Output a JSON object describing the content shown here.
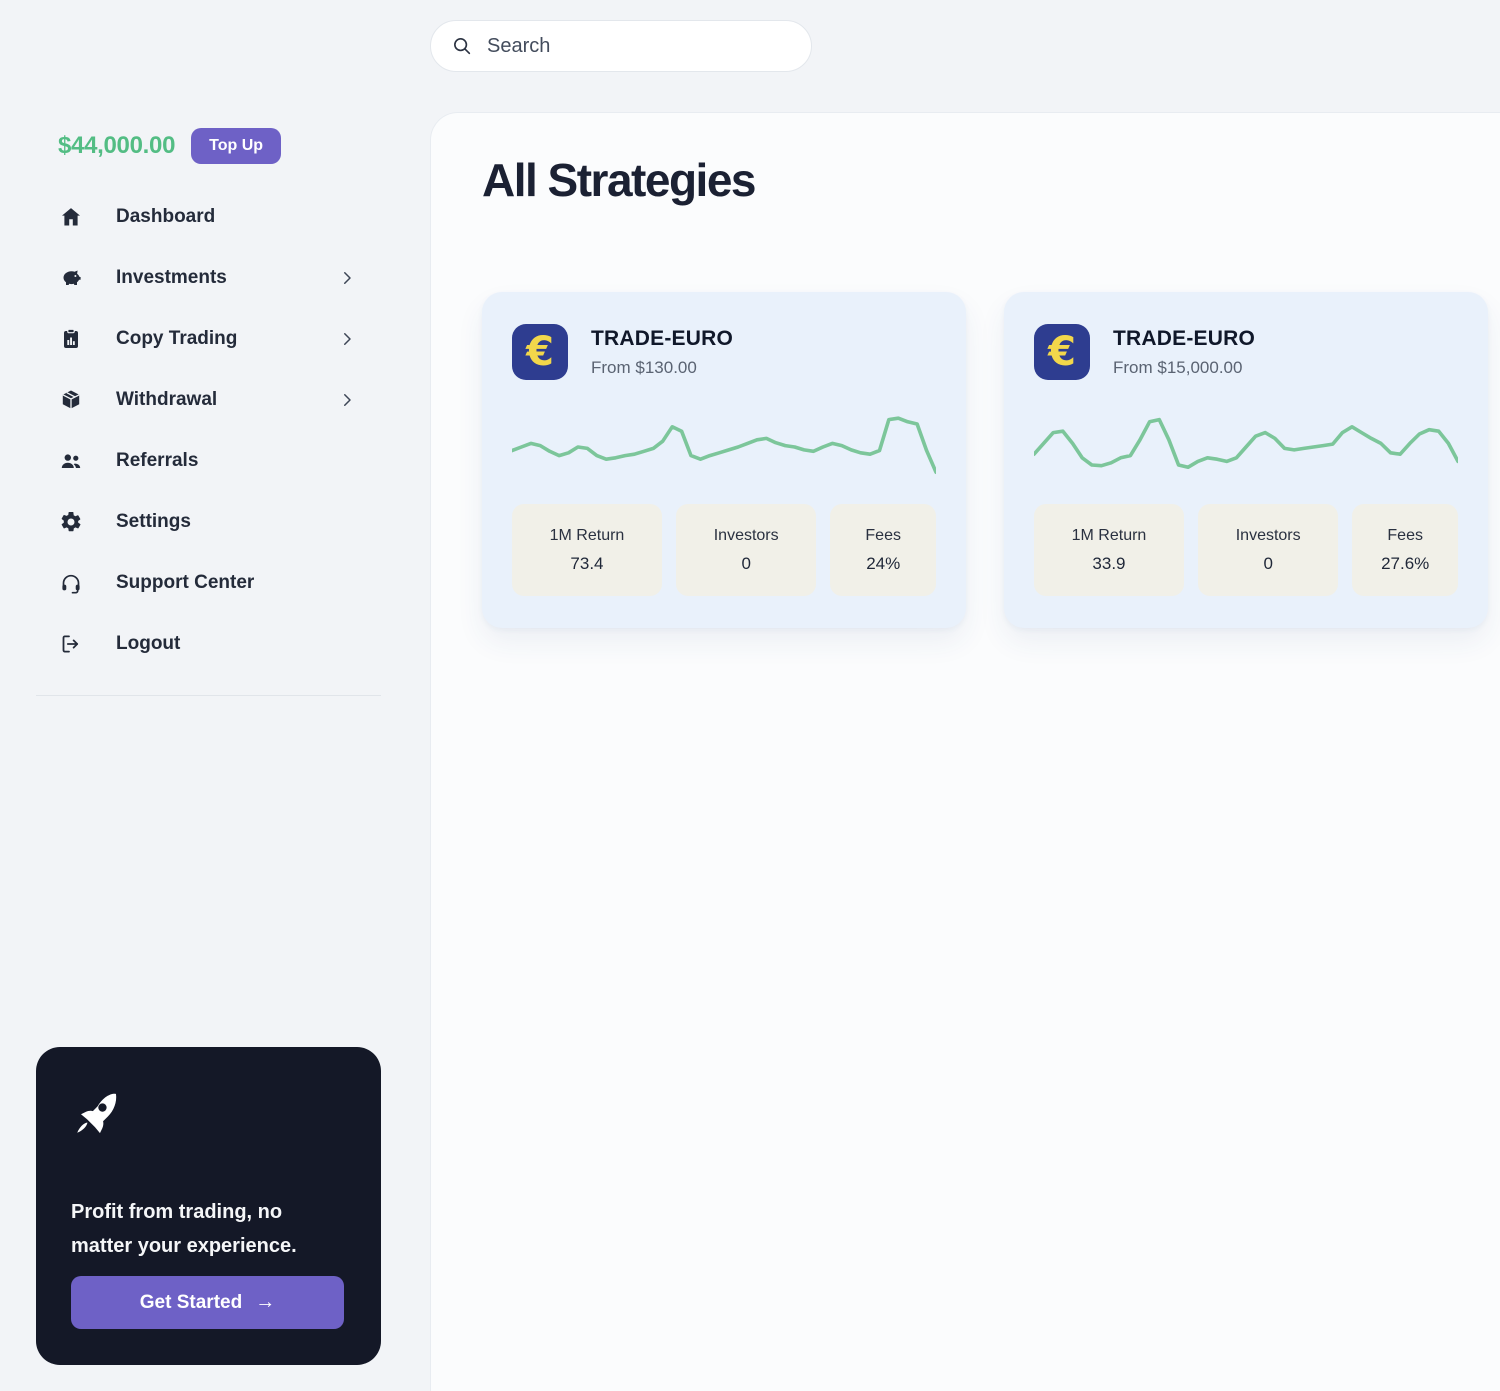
{
  "search": {
    "placeholder": "Search"
  },
  "sidebar": {
    "balance": "$44,000.00",
    "top_up_label": "Top Up",
    "items": [
      {
        "label": "Dashboard",
        "icon": "home-icon",
        "chevron": false
      },
      {
        "label": "Investments",
        "icon": "piggy-bank-icon",
        "chevron": true
      },
      {
        "label": "Copy Trading",
        "icon": "clipboard-chart-icon",
        "chevron": true
      },
      {
        "label": "Withdrawal",
        "icon": "package-icon",
        "chevron": true
      },
      {
        "label": "Referrals",
        "icon": "users-icon",
        "chevron": false
      },
      {
        "label": "Settings",
        "icon": "gear-icon",
        "chevron": false
      },
      {
        "label": "Support Center",
        "icon": "headset-icon",
        "chevron": false
      },
      {
        "label": "Logout",
        "icon": "logout-icon",
        "chevron": false
      }
    ],
    "promo": {
      "text": "Profit from trading, no matter your experience.",
      "button_label": "Get Started",
      "arrow": "→"
    }
  },
  "main": {
    "title": "All Strategies",
    "cards": [
      {
        "name": "TRADE-EURO",
        "from": "From $130.00",
        "currency_symbol": "€",
        "stats": [
          {
            "label": "1M Return",
            "value": "73.4"
          },
          {
            "label": "Investors",
            "value": "0"
          },
          {
            "label": "Fees",
            "value": "24%"
          }
        ],
        "sparkline": [
          45,
          50,
          55,
          52,
          44,
          38,
          42,
          50,
          48,
          38,
          33,
          35,
          38,
          40,
          44,
          48,
          58,
          78,
          72,
          38,
          33,
          38,
          42,
          46,
          50,
          55,
          60,
          62,
          56,
          52,
          50,
          46,
          44,
          50,
          55,
          52,
          46,
          42,
          40,
          45,
          88,
          90,
          85,
          82,
          45,
          15
        ]
      },
      {
        "name": "TRADE-EURO",
        "from": "From $15,000.00",
        "currency_symbol": "€",
        "stats": [
          {
            "label": "1M Return",
            "value": "33.9"
          },
          {
            "label": "Investors",
            "value": "0"
          },
          {
            "label": "Fees",
            "value": "27.6%"
          }
        ],
        "sparkline": [
          40,
          55,
          70,
          72,
          55,
          35,
          25,
          24,
          28,
          35,
          38,
          60,
          85,
          88,
          60,
          25,
          22,
          30,
          35,
          33,
          30,
          35,
          50,
          65,
          70,
          62,
          48,
          46,
          48,
          50,
          52,
          54,
          70,
          78,
          70,
          62,
          55,
          42,
          40,
          55,
          68,
          74,
          72,
          55,
          30
        ]
      }
    ]
  },
  "colors": {
    "balance_green": "#53bd84",
    "accent_purple": "#6e61c6",
    "promo_bg": "#141827",
    "card_bg": "#e9f1fb",
    "stat_bg": "#f1f0e8",
    "euro_tile_blue": "#2e3d90",
    "euro_yellow": "#f2d74b",
    "sparkline_green": "#7cc69a"
  }
}
